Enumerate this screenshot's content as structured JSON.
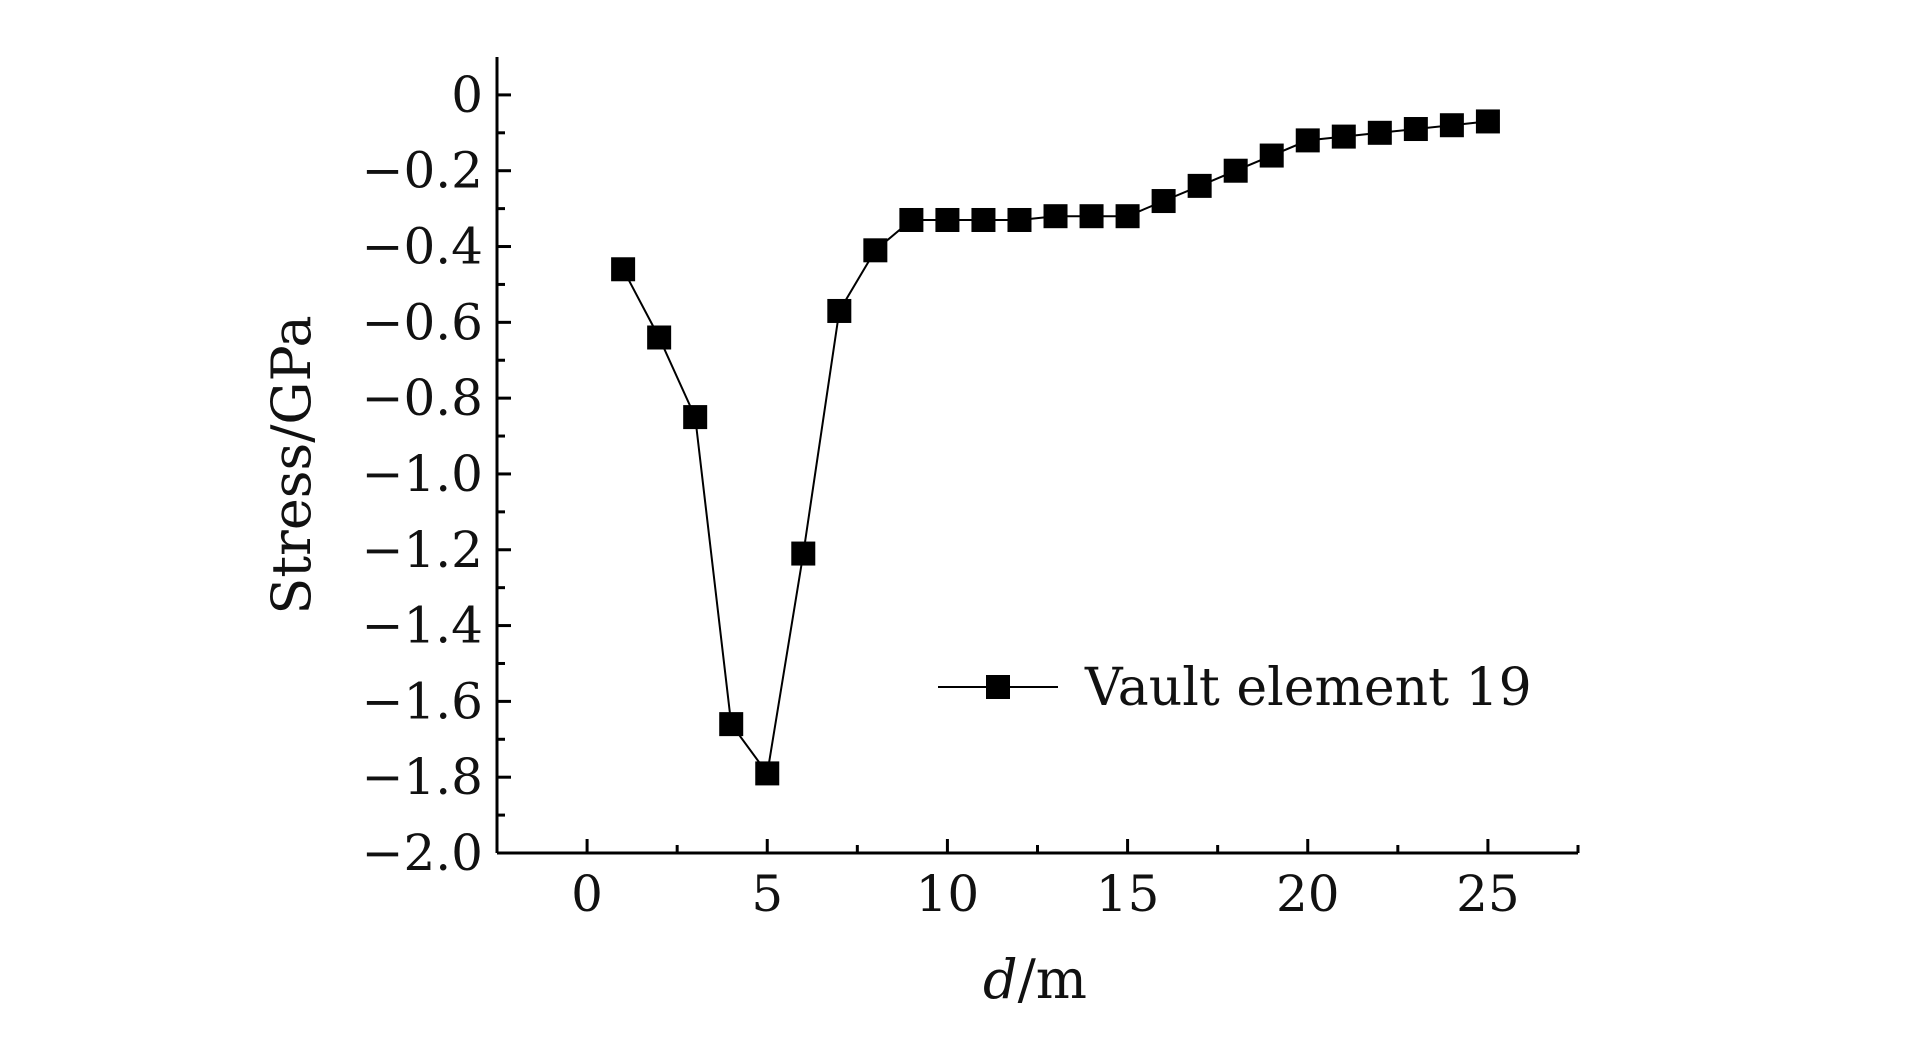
{
  "chart_data": {
    "type": "line",
    "title": "",
    "xlabel": "d/m",
    "xlabel_italic_part": "d",
    "xlabel_rest": "/m",
    "ylabel": "Stress/GPa",
    "xlim": [
      -2.5,
      27.5
    ],
    "ylim": [
      -2.0,
      0.1
    ],
    "xticks": [
      0,
      5,
      10,
      15,
      20,
      25
    ],
    "xtick_labels": [
      "0",
      "5",
      "10",
      "15",
      "20",
      "25"
    ],
    "yticks": [
      0,
      -0.2,
      -0.4,
      -0.6,
      -0.8,
      -1.0,
      -1.2,
      -1.4,
      -1.6,
      -1.8,
      -2.0
    ],
    "ytick_labels": [
      "0",
      "−0.2",
      "−0.4",
      "−0.6",
      "−0.8",
      "−1.0",
      "−1.2",
      "−1.4",
      "−1.6",
      "−1.8",
      "−2.0"
    ],
    "grid": false,
    "legend_position": "lower-right",
    "series": [
      {
        "name": "Vault element 19",
        "marker": "square",
        "color": "#000000",
        "x": [
          1,
          2,
          3,
          4,
          5,
          6,
          7,
          8,
          9,
          10,
          11,
          12,
          13,
          14,
          15,
          16,
          17,
          18,
          19,
          20,
          21,
          22,
          23,
          24,
          25
        ],
        "y": [
          -0.46,
          -0.64,
          -0.85,
          -1.66,
          -1.79,
          -1.21,
          -0.57,
          -0.41,
          -0.33,
          -0.33,
          -0.33,
          -0.33,
          -0.32,
          -0.32,
          -0.32,
          -0.28,
          -0.24,
          -0.2,
          -0.16,
          -0.12,
          -0.11,
          -0.1,
          -0.09,
          -0.08,
          -0.07
        ]
      }
    ]
  }
}
